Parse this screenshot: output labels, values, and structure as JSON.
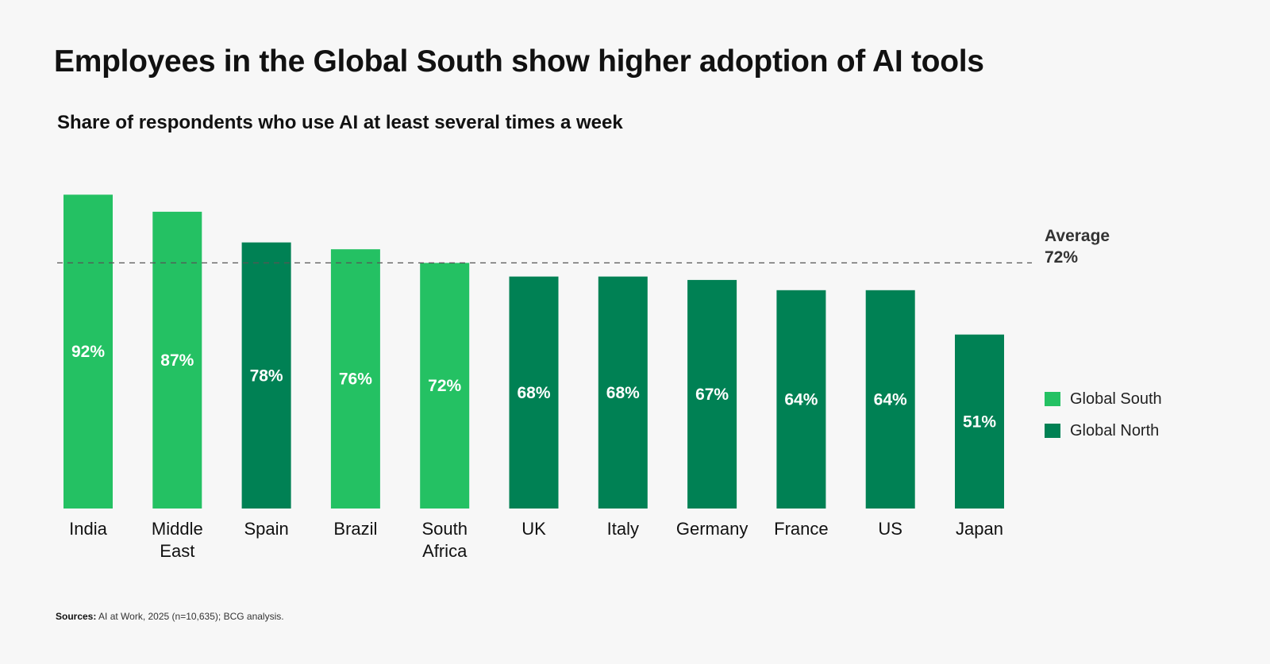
{
  "title": "Employees in the Global South show higher adoption of AI tools",
  "subtitle": "Share of respondents who use AI at least several times a week",
  "average": {
    "label": "Average",
    "value_text": "72%"
  },
  "legend": [
    {
      "name": "Global South",
      "color": "#24c163"
    },
    {
      "name": "Global North",
      "color": "#008154"
    }
  ],
  "source": {
    "label": "Sources:",
    "text": "AI at Work, 2025 (n=10,635); BCG analysis."
  },
  "chart_data": {
    "type": "bar",
    "title": "Employees in the Global South show higher adoption of AI tools",
    "subtitle": "Share of respondents who use AI at least several times a week",
    "categories": [
      [
        "India"
      ],
      [
        "Middle",
        "East"
      ],
      [
        "Spain"
      ],
      [
        "Brazil"
      ],
      [
        "South",
        "Africa"
      ],
      [
        "UK"
      ],
      [
        "Italy"
      ],
      [
        "Germany"
      ],
      [
        "France"
      ],
      [
        "US"
      ],
      [
        "Japan"
      ]
    ],
    "values": [
      92,
      87,
      78,
      76,
      72,
      68,
      68,
      67,
      64,
      64,
      51
    ],
    "value_labels": [
      "92%",
      "87%",
      "78%",
      "76%",
      "72%",
      "68%",
      "68%",
      "67%",
      "64%",
      "64%",
      "51%"
    ],
    "groups": [
      "Global South",
      "Global South",
      "Global North",
      "Global South",
      "Global South",
      "Global North",
      "Global North",
      "Global North",
      "Global North",
      "Global North",
      "Global North"
    ],
    "average": 72,
    "ylim": [
      0,
      100
    ],
    "grid": false,
    "legend_position": "right",
    "colors": {
      "Global South": "#24c163",
      "Global North": "#008154"
    }
  }
}
